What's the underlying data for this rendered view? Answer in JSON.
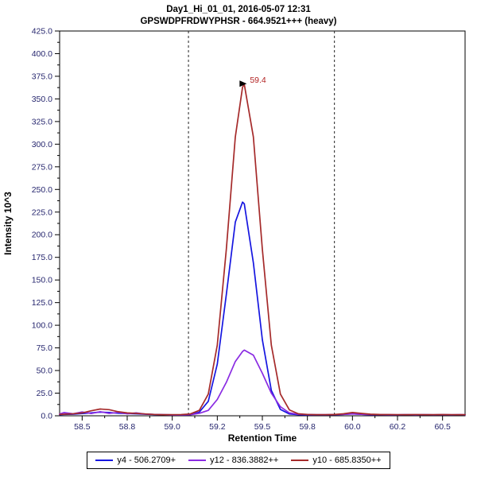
{
  "header": {
    "title_line1": "Day1_Hi_01_01, 2016-05-07 12:31",
    "title_line2": "GPSWDPFRDWYPHSR - 664.9521+++ (heavy)"
  },
  "chart_data": {
    "type": "line",
    "title": "Day1_Hi_01_01, 2016-05-07 12:31",
    "subtitle": "GPSWDPFRDWYPHSR - 664.9521+++ (heavy)",
    "xlabel": "Retention Time",
    "ylabel": "Intensity 10^3",
    "xlim": [
      58.375,
      60.625
    ],
    "ylim": [
      0,
      425
    ],
    "grid": "off",
    "legend_position": "bottom",
    "colors": {
      "axis_text": "#26266e",
      "title_text": "#000000",
      "boundary": "#222222",
      "annotation": "#b22222"
    },
    "x_ticks": {
      "values": [
        58.5,
        58.75,
        59.0,
        59.25,
        59.5,
        59.75,
        60.0,
        60.25,
        60.5
      ],
      "labels": [
        "58.5",
        "58.8",
        "59.0",
        "59.2",
        "59.5",
        "59.8",
        "60.0",
        "60.2",
        "60.5"
      ]
    },
    "y_ticks": {
      "values": [
        0,
        25,
        50,
        75,
        100,
        125,
        150,
        175,
        200,
        225,
        250,
        275,
        300,
        325,
        350,
        375,
        400,
        425
      ],
      "labels": [
        "0.0",
        "25.0",
        "50.0",
        "75.0",
        "100.0",
        "125.0",
        "150.0",
        "175.0",
        "200.0",
        "225.0",
        "250.0",
        "275.0",
        "300.0",
        "325.0",
        "350.0",
        "375.0",
        "400.0",
        "425.0"
      ]
    },
    "peak_boundaries": [
      59.09,
      59.9
    ],
    "annotation": {
      "text": "59.4",
      "x": 59.4,
      "y": 366
    },
    "x": [
      58.375,
      58.4,
      58.45,
      58.5,
      58.55,
      58.6,
      58.65,
      58.7,
      58.75,
      58.8,
      58.85,
      58.9,
      58.95,
      59.0,
      59.05,
      59.1,
      59.15,
      59.2,
      59.25,
      59.3,
      59.35,
      59.39,
      59.4,
      59.45,
      59.5,
      59.55,
      59.6,
      59.65,
      59.7,
      59.75,
      59.8,
      59.85,
      59.9,
      59.95,
      60.0,
      60.05,
      60.1,
      60.15,
      60.2,
      60.25,
      60.3,
      60.35,
      60.4,
      60.45,
      60.5,
      60.55,
      60.6,
      60.625
    ],
    "series": [
      {
        "name": "y4 - 506.2709+",
        "color": "#1515e0",
        "values": [
          1.2,
          1.5,
          1.8,
          2.5,
          3.2,
          4.0,
          3.6,
          2.8,
          2.5,
          2.2,
          1.8,
          1.4,
          1.1,
          1.0,
          1.0,
          1.3,
          4.0,
          16,
          57,
          134,
          214,
          236,
          234,
          169,
          84,
          28,
          7,
          2.0,
          1.2,
          1.0,
          1.0,
          1.0,
          1.1,
          1.5,
          2.2,
          1.6,
          1.2,
          1.1,
          1.0,
          1.0,
          1.1,
          1.0,
          1.1,
          1.0,
          1.1,
          1.0,
          1.1,
          1.0
        ]
      },
      {
        "name": "y12 - 836.3882++",
        "color": "#8a2be2",
        "values": [
          2.0,
          3.5,
          2.2,
          4.2,
          2.5,
          4.6,
          2.6,
          3.8,
          2.2,
          3.2,
          1.9,
          1.5,
          1.2,
          1.0,
          1.0,
          1.2,
          2.7,
          6,
          18,
          37,
          60,
          71,
          72.5,
          67,
          47,
          25,
          10,
          3.2,
          1.7,
          1.4,
          1.2,
          1.2,
          1.3,
          1.6,
          2.1,
          1.6,
          1.3,
          1.2,
          1.2,
          1.1,
          1.2,
          1.1,
          1.2,
          1.1,
          1.2,
          1.1,
          1.2,
          1.1
        ]
      },
      {
        "name": "y10 - 685.8350++",
        "color": "#a52a2a",
        "values": [
          1.5,
          1.8,
          2.2,
          3.2,
          5.5,
          7.5,
          6.8,
          4.5,
          3.2,
          2.6,
          2.0,
          1.5,
          1.2,
          1.2,
          1.3,
          2.0,
          6,
          24,
          78,
          184,
          308,
          363,
          366,
          308,
          184,
          78,
          24,
          6.5,
          2.2,
          1.4,
          1.2,
          1.2,
          1.4,
          2.2,
          3.6,
          2.6,
          1.8,
          1.4,
          1.3,
          1.2,
          1.2,
          1.3,
          1.2,
          1.2,
          1.3,
          1.2,
          1.2,
          1.2
        ]
      }
    ]
  }
}
